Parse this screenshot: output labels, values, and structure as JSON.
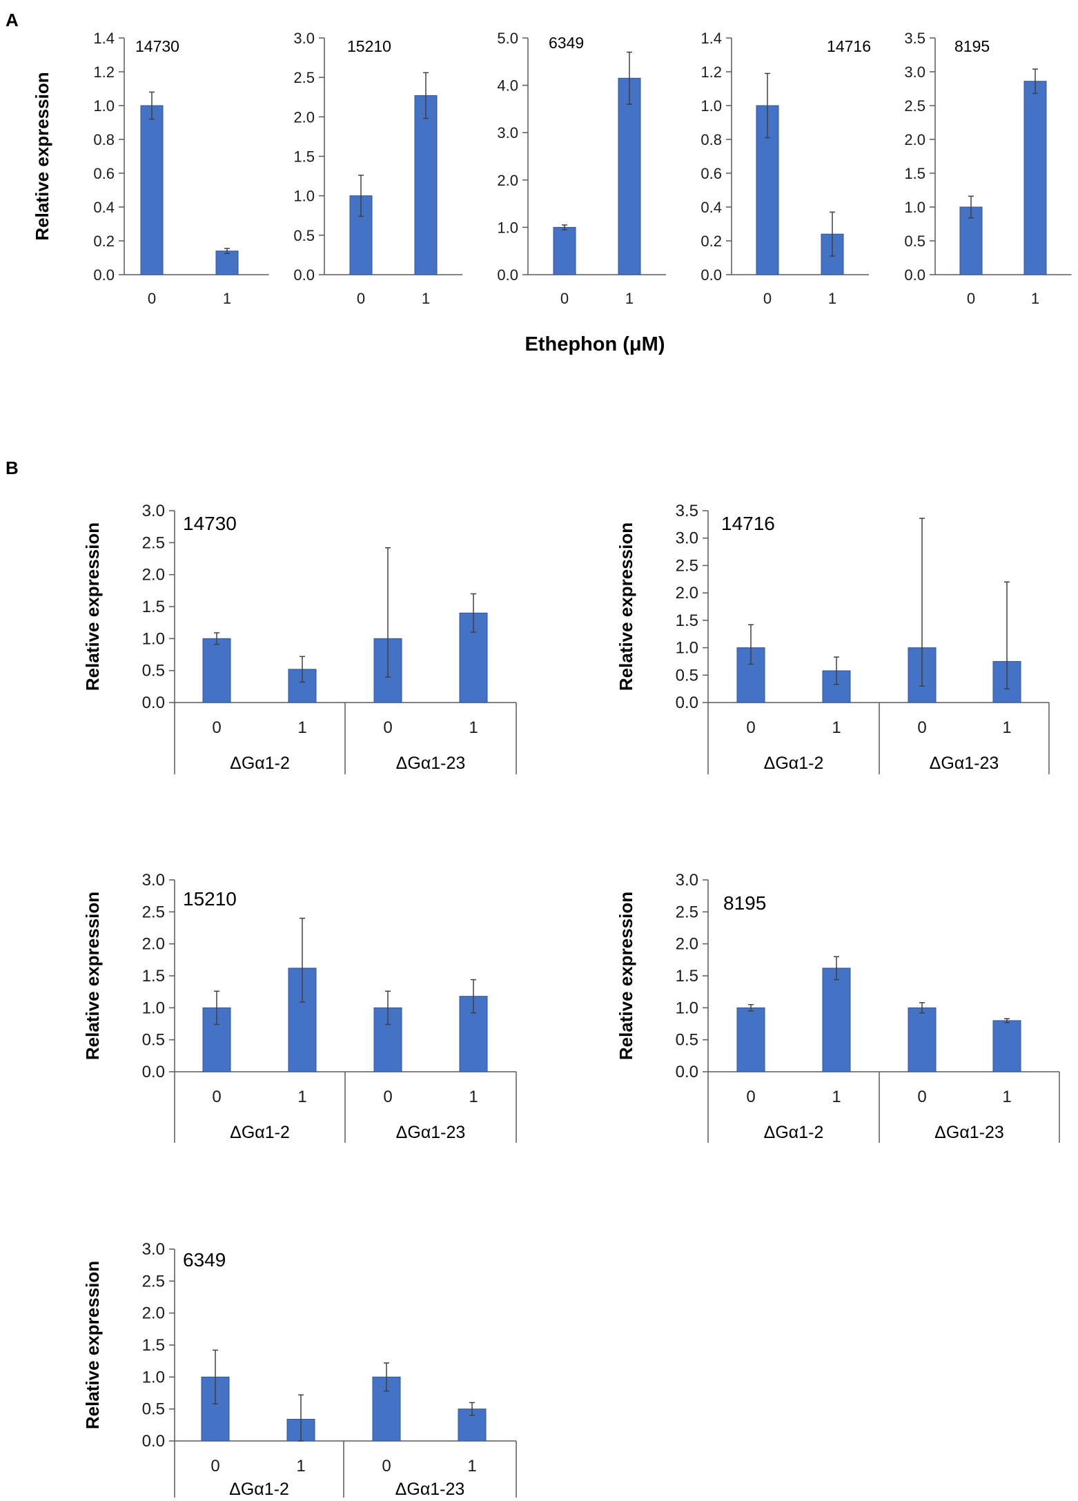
{
  "panels": {
    "a_label": "A",
    "b_label": "B",
    "a_xlabel": "Ethephon (μM)"
  },
  "style": {
    "bar_color": "#4472c4",
    "bar_edge": "#2f5597",
    "axis_color": "#595959",
    "error_color": "#404040"
  },
  "chart_data": [
    {
      "type": "bar",
      "panel": "A",
      "title": "14730",
      "categories": [
        "0",
        "1"
      ],
      "values": [
        1.0,
        0.14
      ],
      "errors": [
        0.08,
        0.015
      ],
      "ylim": [
        0,
        1.4
      ],
      "yticks": [
        "0.0",
        "0.2",
        "0.4",
        "0.6",
        "0.8",
        "1.0",
        "1.2",
        "1.4"
      ],
      "ylabel": "Relative expression",
      "title_align": "left"
    },
    {
      "type": "bar",
      "panel": "A",
      "title": "15210",
      "categories": [
        "0",
        "1"
      ],
      "values": [
        1.0,
        2.27
      ],
      "errors": [
        0.26,
        0.29
      ],
      "ylim": [
        0,
        3.0
      ],
      "yticks": [
        "0.0",
        "0.5",
        "1.0",
        "1.5",
        "2.0",
        "2.5",
        "3.0"
      ],
      "ylabel": "",
      "title_align": "left"
    },
    {
      "type": "bar",
      "panel": "A",
      "title": "6349",
      "categories": [
        "0",
        "1"
      ],
      "values": [
        1.0,
        4.15
      ],
      "errors": [
        0.05,
        0.55
      ],
      "ylim": [
        0,
        5.0
      ],
      "yticks": [
        "0.0",
        "1.0",
        "2.0",
        "3.0",
        "4.0",
        "5.0"
      ],
      "ylabel": "",
      "title_align": "left"
    },
    {
      "type": "bar",
      "panel": "A",
      "title": "14716",
      "categories": [
        "0",
        "1"
      ],
      "values": [
        1.0,
        0.24
      ],
      "errors": [
        0.19,
        0.13
      ],
      "ylim": [
        0,
        1.4
      ],
      "yticks": [
        "0.0",
        "0.2",
        "0.4",
        "0.6",
        "0.8",
        "1.0",
        "1.2",
        "1.4"
      ],
      "ylabel": "",
      "title_align": "right"
    },
    {
      "type": "bar",
      "panel": "A",
      "title": "8195",
      "categories": [
        "0",
        "1"
      ],
      "values": [
        1.0,
        2.86
      ],
      "errors": [
        0.16,
        0.18
      ],
      "ylim": [
        0,
        3.5
      ],
      "yticks": [
        "0.0",
        "0.5",
        "1.0",
        "1.5",
        "2.0",
        "2.5",
        "3.0",
        "3.5"
      ],
      "ylabel": "",
      "title_align": "left"
    },
    {
      "type": "bar",
      "panel": "B",
      "title": "14730",
      "categories": [
        "0",
        "1",
        "0",
        "1"
      ],
      "groups": [
        "ΔGα1-2",
        "ΔGα1-23"
      ],
      "values": [
        1.0,
        0.52,
        1.0,
        1.4
      ],
      "err_lo": [
        0.09,
        0.2,
        0.6,
        0.3
      ],
      "err_hi": [
        0.09,
        0.2,
        1.42,
        0.3
      ],
      "ylim": [
        0,
        3.0
      ],
      "yticks": [
        "0.0",
        "0.5",
        "1.0",
        "1.5",
        "2.0",
        "2.5",
        "3.0"
      ],
      "ylabel": "Relative expression"
    },
    {
      "type": "bar",
      "panel": "B",
      "title": "14716",
      "categories": [
        "0",
        "1",
        "0",
        "1"
      ],
      "groups": [
        "ΔGα1-2",
        "ΔGα1-23"
      ],
      "values": [
        1.0,
        0.58,
        1.0,
        0.75
      ],
      "err_lo": [
        0.3,
        0.25,
        0.7,
        0.5
      ],
      "err_hi": [
        0.42,
        0.25,
        2.36,
        1.45
      ],
      "ylim": [
        0,
        3.5
      ],
      "yticks": [
        "0.0",
        "0.5",
        "1.0",
        "1.5",
        "2.0",
        "2.5",
        "3.0",
        "3.5"
      ],
      "ylabel": "Relative expression"
    },
    {
      "type": "bar",
      "panel": "B",
      "title": "15210",
      "categories": [
        "0",
        "1",
        "0",
        "1"
      ],
      "groups": [
        "ΔGα1-2",
        "ΔGα1-23"
      ],
      "values": [
        1.0,
        1.62,
        1.0,
        1.18
      ],
      "err_lo": [
        0.26,
        0.53,
        0.26,
        0.26
      ],
      "err_hi": [
        0.26,
        0.78,
        0.26,
        0.26
      ],
      "ylim": [
        0,
        3.0
      ],
      "yticks": [
        "0.0",
        "0.5",
        "1.0",
        "1.5",
        "2.0",
        "2.5",
        "3.0"
      ],
      "ylabel": "Relative expression"
    },
    {
      "type": "bar",
      "panel": "B",
      "title": "8195",
      "categories": [
        "0",
        "1",
        "0",
        "1"
      ],
      "groups": [
        "ΔGα1-2",
        "ΔGα1-23"
      ],
      "values": [
        1.0,
        1.62,
        1.0,
        0.8
      ],
      "err_lo": [
        0.05,
        0.18,
        0.08,
        0.03
      ],
      "err_hi": [
        0.05,
        0.18,
        0.08,
        0.03
      ],
      "ylim": [
        0,
        3.0
      ],
      "yticks": [
        "0.0",
        "0.5",
        "1.0",
        "1.5",
        "2.0",
        "2.5",
        "3.0"
      ],
      "ylabel": "Relative expression"
    },
    {
      "type": "bar",
      "panel": "B",
      "title": "6349",
      "categories": [
        "0",
        "1",
        "0",
        "1"
      ],
      "groups": [
        "ΔGα1-2",
        "ΔGα1-23"
      ],
      "values": [
        1.0,
        0.34,
        1.0,
        0.5
      ],
      "err_lo": [
        0.42,
        0.38,
        0.22,
        0.1
      ],
      "err_hi": [
        0.42,
        0.38,
        0.22,
        0.1
      ],
      "ylim": [
        0,
        3.0
      ],
      "yticks": [
        "0.0",
        "0.5",
        "1.0",
        "1.5",
        "2.0",
        "2.5",
        "3.0"
      ],
      "ylabel": "Relative expression"
    }
  ]
}
